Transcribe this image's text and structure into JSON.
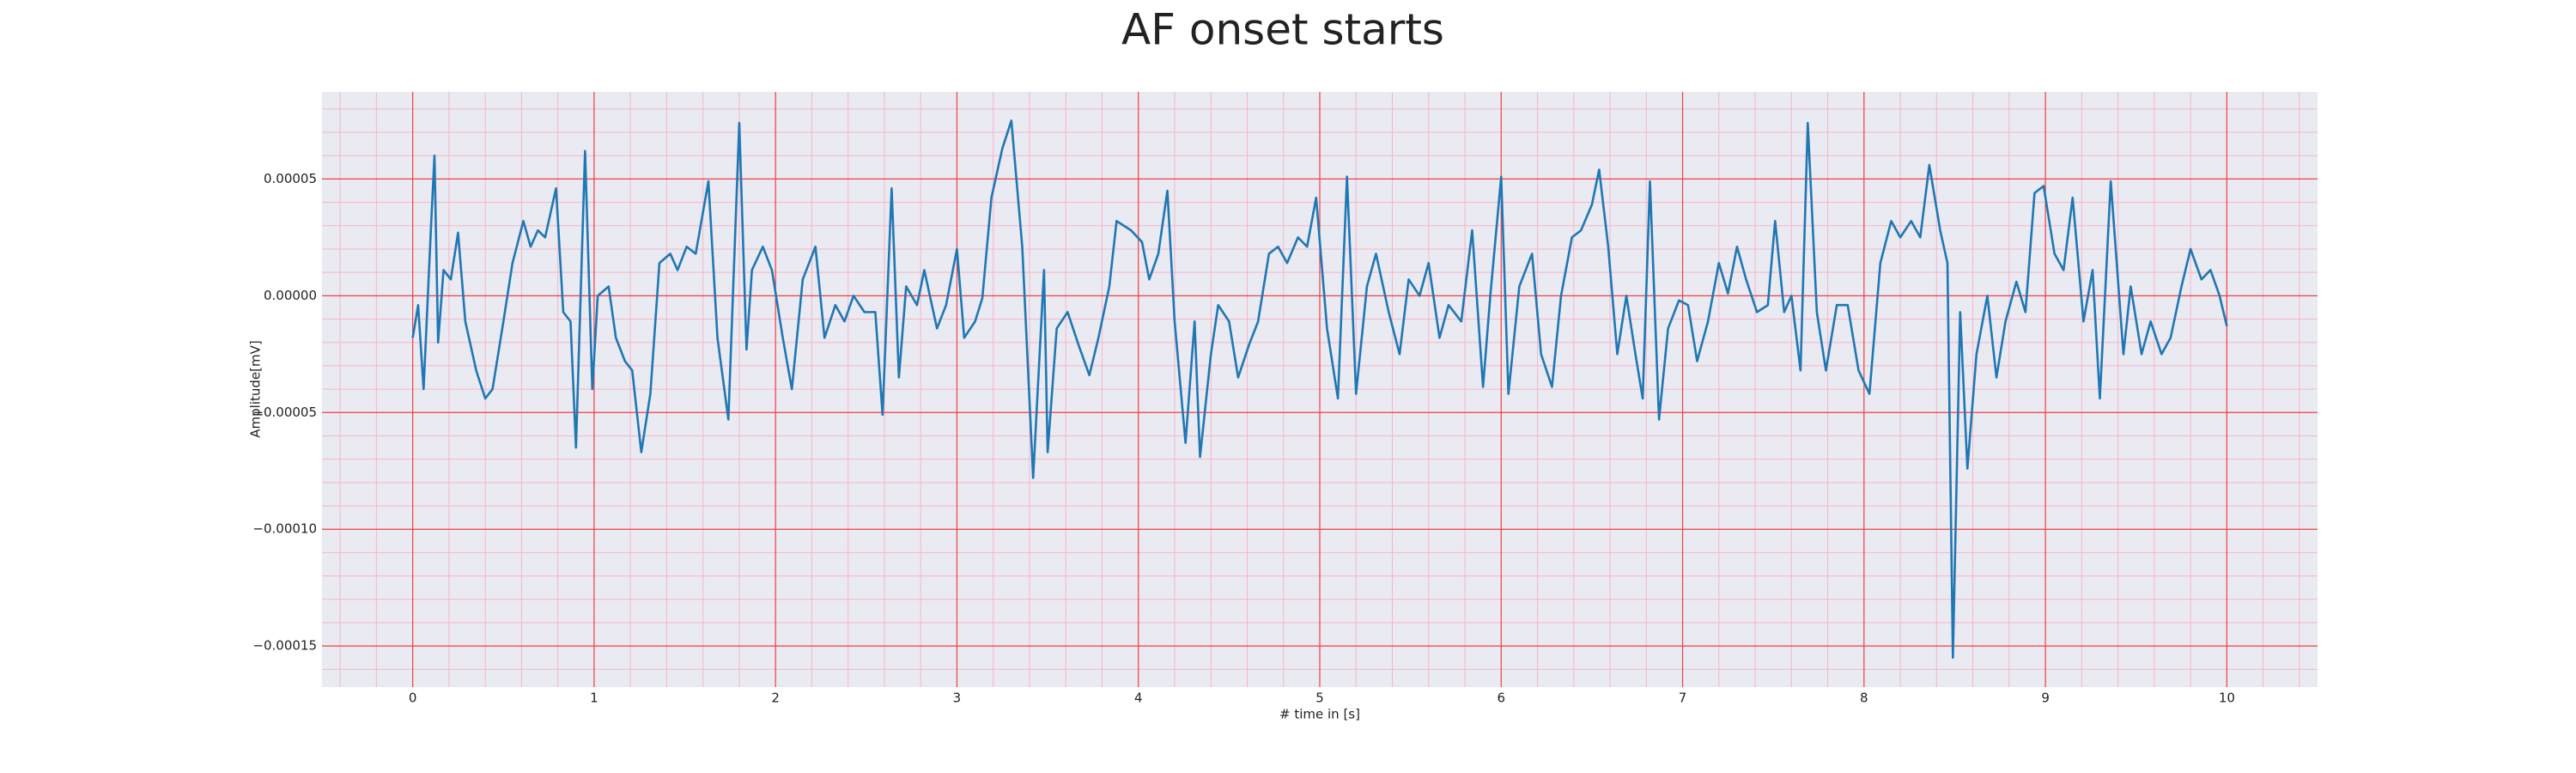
{
  "chart_data": {
    "type": "line",
    "title": "AF onset starts",
    "xlabel": "# time in [s]",
    "ylabel": "Amplitude[mV]",
    "xlim": [
      -0.5,
      10.5
    ],
    "ylim": [
      -0.0001676,
      8.73e-05
    ],
    "xticks": [
      0,
      1,
      2,
      3,
      4,
      5,
      6,
      7,
      8,
      9,
      10
    ],
    "yticks": [
      {
        "value": -0.00015,
        "label": "−0.00015"
      },
      {
        "value": -0.0001,
        "label": "−0.00010"
      },
      {
        "value": -5e-05,
        "label": "−0.00005"
      },
      {
        "value": 0,
        "label": "0.00000"
      },
      5e-05
    ],
    "grid": true,
    "minor_grid": true,
    "series": [
      {
        "color": "#1f77b4",
        "x": [
          0,
          0.03,
          0.06,
          0.1,
          0.12,
          0.14,
          0.17,
          0.21,
          0.25,
          0.29,
          0.35,
          0.4,
          0.44,
          0.5,
          0.55,
          0.61,
          0.65,
          0.69,
          0.73,
          0.79,
          0.83,
          0.87,
          0.9,
          0.95,
          0.99,
          1.02,
          1.08,
          1.12,
          1.17,
          1.21,
          1.26,
          1.31,
          1.36,
          1.42,
          1.46,
          1.51,
          1.56,
          1.63,
          1.68,
          1.74,
          1.8,
          1.84,
          1.87,
          1.93,
          1.98,
          2.04,
          2.09,
          2.15,
          2.22,
          2.27,
          2.33,
          2.38,
          2.43,
          2.49,
          2.55,
          2.59,
          2.64,
          2.68,
          2.72,
          2.78,
          2.82,
          2.89,
          2.94,
          3.0,
          3.04,
          3.1,
          3.14,
          3.19,
          3.25,
          3.3,
          3.36,
          3.42,
          3.48,
          3.5,
          3.55,
          3.61,
          3.67,
          3.73,
          3.78,
          3.84,
          3.88,
          3.96,
          4.02,
          4.06,
          4.11,
          4.16,
          4.2,
          4.26,
          4.31,
          4.34,
          4.4,
          4.44,
          4.5,
          4.55,
          4.61,
          4.66,
          4.72,
          4.77,
          4.82,
          4.88,
          4.93,
          4.98,
          5.04,
          5.1,
          5.15,
          5.2,
          5.26,
          5.31,
          5.38,
          5.44,
          5.49,
          5.55,
          5.6,
          5.66,
          5.71,
          5.78,
          5.84,
          5.9,
          5.94,
          6.0,
          6.04,
          6.1,
          6.17,
          6.22,
          6.28,
          6.33,
          6.39,
          6.44,
          6.5,
          6.54,
          6.59,
          6.64,
          6.69,
          6.74,
          6.78,
          6.82,
          6.87,
          6.92,
          6.98,
          7.03,
          7.08,
          7.14,
          7.2,
          7.25,
          7.3,
          7.35,
          7.41,
          7.47,
          7.51,
          7.56,
          7.6,
          7.65,
          7.69,
          7.74,
          7.79,
          7.85,
          7.91,
          7.97,
          8.03,
          8.09,
          8.15,
          8.2,
          8.26,
          8.31,
          8.36,
          8.42,
          8.46,
          8.49,
          8.53,
          8.57,
          8.62,
          8.68,
          8.73,
          8.78,
          8.84,
          8.89,
          8.94,
          8.99,
          9.05,
          9.1,
          9.15,
          9.21,
          9.26,
          9.3,
          9.36,
          9.43,
          9.47,
          9.53,
          9.58,
          9.64,
          9.69,
          9.75,
          9.8,
          9.86,
          9.91,
          9.96,
          10.0
        ],
        "values": [
          -1.8e-05,
          -4e-06,
          -4e-05,
          2.8e-05,
          6e-05,
          -2e-05,
          1.1e-05,
          7e-06,
          2.7e-05,
          -1.1e-05,
          -3.2e-05,
          -4.4e-05,
          -4e-05,
          -1.1e-05,
          1.4e-05,
          3.2e-05,
          2.1e-05,
          2.8e-05,
          2.5e-05,
          4.6e-05,
          -7e-06,
          -1.1e-05,
          -6.5e-05,
          6.2e-05,
          -4e-05,
          0,
          4e-06,
          -1.8e-05,
          -2.8e-05,
          -3.2e-05,
          -6.7e-05,
          -4.2e-05,
          1.4e-05,
          1.8e-05,
          1.1e-05,
          2.1e-05,
          1.8e-05,
          4.9e-05,
          -1.8e-05,
          -5.3e-05,
          7.4e-05,
          -2.3e-05,
          1.1e-05,
          2.1e-05,
          1.1e-05,
          -1.8e-05,
          -4e-05,
          7e-06,
          2.1e-05,
          -1.8e-05,
          -4e-06,
          -1.1e-05,
          0,
          -7e-06,
          -7e-06,
          -5.1e-05,
          4.6e-05,
          -3.5e-05,
          4e-06,
          -4e-06,
          1.1e-05,
          -1.4e-05,
          -4e-06,
          2e-05,
          -1.8e-05,
          -1.1e-05,
          -1e-06,
          4.2e-05,
          6.3e-05,
          7.5e-05,
          2.1e-05,
          -7.8e-05,
          1.1e-05,
          -6.7e-05,
          -1.4e-05,
          -7e-06,
          -2.1e-05,
          -3.4e-05,
          -1.8e-05,
          4e-06,
          3.2e-05,
          2.8e-05,
          2.3e-05,
          7e-06,
          1.8e-05,
          4.5e-05,
          -1.1e-05,
          -6.3e-05,
          -1.1e-05,
          -6.9e-05,
          -2.5e-05,
          -4e-06,
          -1.1e-05,
          -3.5e-05,
          -2.1e-05,
          -1.1e-05,
          1.8e-05,
          2.1e-05,
          1.4e-05,
          2.5e-05,
          2.1e-05,
          4.2e-05,
          -1.4e-05,
          -4.4e-05,
          5.1e-05,
          -4.2e-05,
          4e-06,
          1.8e-05,
          -7e-06,
          -2.5e-05,
          7e-06,
          0,
          1.4e-05,
          -1.8e-05,
          -4e-06,
          -1.1e-05,
          2.8e-05,
          -3.9e-05,
          0,
          5.1e-05,
          -4.2e-05,
          4e-06,
          1.8e-05,
          -2.5e-05,
          -3.9e-05,
          0,
          2.5e-05,
          2.8e-05,
          3.9e-05,
          5.4e-05,
          2.1e-05,
          -2.5e-05,
          0,
          -2.5e-05,
          -4.4e-05,
          4.9e-05,
          -5.3e-05,
          -1.4e-05,
          -2e-06,
          -4e-06,
          -2.8e-05,
          -1.1e-05,
          1.4e-05,
          1e-06,
          2.1e-05,
          7e-06,
          -7e-06,
          -4e-06,
          3.2e-05,
          -7e-06,
          0,
          -3.2e-05,
          7.4e-05,
          -7e-06,
          -3.2e-05,
          -4e-06,
          -4e-06,
          -3.2e-05,
          -4.2e-05,
          1.4e-05,
          3.2e-05,
          2.5e-05,
          3.2e-05,
          2.5e-05,
          5.6e-05,
          2.8e-05,
          1.4e-05,
          -0.000155,
          -7e-06,
          -7.4e-05,
          -2.5e-05,
          0,
          -3.5e-05,
          -1.1e-05,
          6e-06,
          -7e-06,
          4.4e-05,
          4.7e-05,
          1.8e-05,
          1.1e-05,
          4.2e-05,
          -1.1e-05,
          1.1e-05,
          -4.4e-05,
          4.9e-05,
          -2.5e-05,
          4e-06,
          -2.5e-05,
          -1.1e-05,
          -2.5e-05,
          -1.8e-05,
          4e-06,
          2e-05,
          7e-06,
          1.1e-05,
          0,
          -1.3e-05
        ]
      }
    ]
  }
}
